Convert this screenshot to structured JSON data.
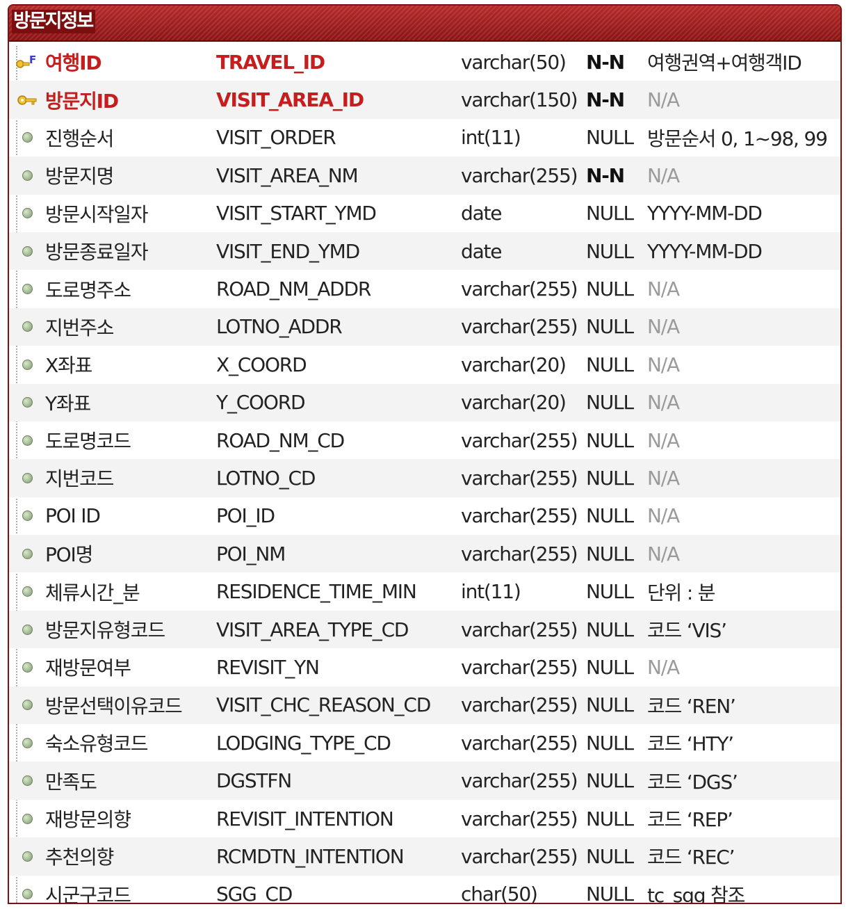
{
  "entity": {
    "title": "방문지정보",
    "rows": [
      {
        "icon": "fk-key-icon",
        "name": "여행ID",
        "column": "TRAVEL_ID",
        "type": "varchar(50)",
        "nullable": "N-N",
        "desc": "여행권역+여행객ID",
        "key": "pk",
        "desc_na": false
      },
      {
        "icon": "pk-key-icon",
        "name": "방문지ID",
        "column": "VISIT_AREA_ID",
        "type": "varchar(150)",
        "nullable": "N-N",
        "desc": "N/A",
        "key": "pk",
        "desc_na": true
      },
      {
        "icon": "attribute-icon",
        "name": "진행순서",
        "column": "VISIT_ORDER",
        "type": "int(11)",
        "nullable": "NULL",
        "desc": "방문순서 0, 1~98, 99",
        "key": "",
        "desc_na": false
      },
      {
        "icon": "attribute-icon",
        "name": "방문지명",
        "column": "VISIT_AREA_NM",
        "type": "varchar(255)",
        "nullable": "N-N",
        "desc": "N/A",
        "key": "",
        "desc_na": true
      },
      {
        "icon": "attribute-icon",
        "name": "방문시작일자",
        "column": "VISIT_START_YMD",
        "type": "date",
        "nullable": "NULL",
        "desc": "YYYY-MM-DD",
        "key": "",
        "desc_na": false
      },
      {
        "icon": "attribute-icon",
        "name": "방문종료일자",
        "column": "VISIT_END_YMD",
        "type": "date",
        "nullable": "NULL",
        "desc": "YYYY-MM-DD",
        "key": "",
        "desc_na": false
      },
      {
        "icon": "attribute-icon",
        "name": "도로명주소",
        "column": "ROAD_NM_ADDR",
        "type": "varchar(255)",
        "nullable": "NULL",
        "desc": "N/A",
        "key": "",
        "desc_na": true
      },
      {
        "icon": "attribute-icon",
        "name": "지번주소",
        "column": "LOTNO_ADDR",
        "type": "varchar(255)",
        "nullable": "NULL",
        "desc": "N/A",
        "key": "",
        "desc_na": true
      },
      {
        "icon": "attribute-icon",
        "name": "X좌표",
        "column": "X_COORD",
        "type": "varchar(20)",
        "nullable": "NULL",
        "desc": "N/A",
        "key": "",
        "desc_na": true
      },
      {
        "icon": "attribute-icon",
        "name": "Y좌표",
        "column": "Y_COORD",
        "type": "varchar(20)",
        "nullable": "NULL",
        "desc": "N/A",
        "key": "",
        "desc_na": true
      },
      {
        "icon": "attribute-icon",
        "name": "도로명코드",
        "column": "ROAD_NM_CD",
        "type": "varchar(255)",
        "nullable": "NULL",
        "desc": "N/A",
        "key": "",
        "desc_na": true
      },
      {
        "icon": "attribute-icon",
        "name": "지번코드",
        "column": "LOTNO_CD",
        "type": "varchar(255)",
        "nullable": "NULL",
        "desc": "N/A",
        "key": "",
        "desc_na": true
      },
      {
        "icon": "attribute-icon",
        "name": "POI ID",
        "column": "POI_ID",
        "type": "varchar(255)",
        "nullable": "NULL",
        "desc": "N/A",
        "key": "",
        "desc_na": true
      },
      {
        "icon": "attribute-icon",
        "name": "POI명",
        "column": "POI_NM",
        "type": "varchar(255)",
        "nullable": "NULL",
        "desc": "N/A",
        "key": "",
        "desc_na": true
      },
      {
        "icon": "attribute-icon",
        "name": "체류시간_분",
        "column": "RESIDENCE_TIME_MIN",
        "type": "int(11)",
        "nullable": "NULL",
        "desc": "단위 : 분",
        "key": "",
        "desc_na": false
      },
      {
        "icon": "attribute-icon",
        "name": "방문지유형코드",
        "column": "VISIT_AREA_TYPE_CD",
        "type": "varchar(255)",
        "nullable": "NULL",
        "desc": "코드 ‘VIS’",
        "key": "",
        "desc_na": false
      },
      {
        "icon": "attribute-icon",
        "name": "재방문여부",
        "column": "REVISIT_YN",
        "type": "varchar(255)",
        "nullable": "NULL",
        "desc": "N/A",
        "key": "",
        "desc_na": true
      },
      {
        "icon": "attribute-icon",
        "name": "방문선택이유코드",
        "column": "VISIT_CHC_REASON_CD",
        "type": "varchar(255)",
        "nullable": "NULL",
        "desc": "코드 ‘REN’",
        "key": "",
        "desc_na": false
      },
      {
        "icon": "attribute-icon",
        "name": "숙소유형코드",
        "column": "LODGING_TYPE_CD",
        "type": "varchar(255)",
        "nullable": "NULL",
        "desc": "코드 ‘HTY’",
        "key": "",
        "desc_na": false
      },
      {
        "icon": "attribute-icon",
        "name": "만족도",
        "column": "DGSTFN",
        "type": "varchar(255)",
        "nullable": "NULL",
        "desc": "코드 ‘DGS’",
        "key": "",
        "desc_na": false
      },
      {
        "icon": "attribute-icon",
        "name": "재방문의향",
        "column": "REVISIT_INTENTION",
        "type": "varchar(255)",
        "nullable": "NULL",
        "desc": "코드 ‘REP’",
        "key": "",
        "desc_na": false
      },
      {
        "icon": "attribute-icon",
        "name": "추천의향",
        "column": "RCMDTN_INTENTION",
        "type": "varchar(255)",
        "nullable": "NULL",
        "desc": "코드 ‘REC’",
        "key": "",
        "desc_na": false
      },
      {
        "icon": "attribute-icon",
        "name": "시군구코드",
        "column": "SGG_CD",
        "type": "char(50)",
        "nullable": "NULL",
        "desc": "tc_sgg 참조",
        "key": "",
        "desc_na": false
      }
    ]
  },
  "colors": {
    "header": "#9a1a1a",
    "pk_text": "#c41e1e",
    "na_text": "#9a9a9a"
  }
}
